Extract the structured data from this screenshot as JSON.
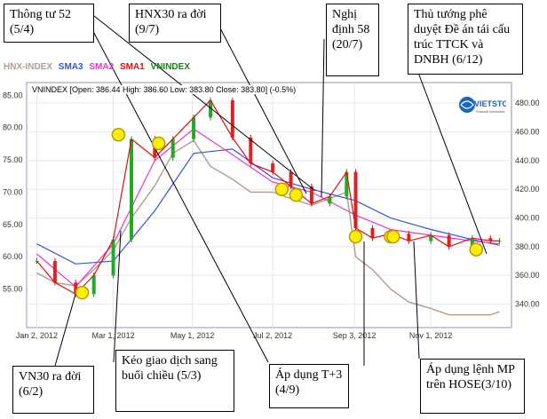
{
  "chart_data": {
    "type": "line",
    "info_bar": "VNINDEX [Open: 386.44  High: 386.60  Low: 383.80  Close: 383.80] (-0.5%)",
    "legend": [
      "HNX-INDEX",
      "SMA3",
      "SMA2",
      "SMA1",
      "VNINDEX"
    ],
    "legend_colors": [
      "#b49c8c",
      "#3355dd",
      "#ee33cc",
      "#dd1111",
      "#118811"
    ],
    "left_axis": {
      "ticks": [
        "85.00",
        "80.00",
        "75.00",
        "70.00",
        "65.00",
        "60.00",
        "55.00"
      ],
      "range": [
        50,
        86
      ]
    },
    "right_axis": {
      "ticks": [
        "480.00",
        "460.00",
        "440.00",
        "420.00",
        "400.00",
        "380.00",
        "360.00",
        "340.00"
      ],
      "range": [
        328,
        490
      ]
    },
    "x_ticks": [
      "Jan 2, 2012",
      "Mar 1, 2012",
      "May 1, 2012",
      "Jul 2, 2012",
      "Sep 3, 2012",
      "Nov 1, 2012"
    ],
    "x_range": [
      "2012-01-01",
      "2012-12-25"
    ],
    "vnindex": {
      "dates": [
        "2012-01-02",
        "2012-01-16",
        "2012-02-01",
        "2012-02-15",
        "2012-03-01",
        "2012-03-15",
        "2012-04-02",
        "2012-04-16",
        "2012-05-02",
        "2012-05-15",
        "2012-06-01",
        "2012-06-15",
        "2012-07-02",
        "2012-07-16",
        "2012-08-01",
        "2012-08-15",
        "2012-08-28",
        "2012-09-04",
        "2012-09-17",
        "2012-10-01",
        "2012-10-15",
        "2012-11-01",
        "2012-11-15",
        "2012-12-03",
        "2012-12-17",
        "2012-12-24"
      ],
      "values": [
        370,
        355,
        347,
        360,
        385,
        455,
        442,
        455,
        470,
        482,
        456,
        438,
        432,
        422,
        410,
        415,
        432,
        393,
        386,
        389,
        384,
        388,
        380,
        386,
        384,
        384
      ]
    },
    "hnx_index": {
      "dates": [
        "2012-01-02",
        "2012-01-16",
        "2012-02-01",
        "2012-02-15",
        "2012-03-01",
        "2012-03-15",
        "2012-04-02",
        "2012-04-16",
        "2012-05-02",
        "2012-05-15",
        "2012-06-01",
        "2012-06-15",
        "2012-07-02",
        "2012-07-16",
        "2012-08-01",
        "2012-08-15",
        "2012-08-28",
        "2012-09-04",
        "2012-09-17",
        "2012-10-01",
        "2012-10-15",
        "2012-11-01",
        "2012-11-15",
        "2012-12-03",
        "2012-12-17",
        "2012-12-24"
      ],
      "values": [
        57.5,
        56,
        55.5,
        58,
        61,
        66,
        71,
        76,
        78,
        74,
        72,
        70,
        70,
        69,
        68,
        69,
        70,
        60,
        58,
        55,
        53,
        52,
        51,
        51,
        51,
        51.5
      ]
    },
    "sma_slow": {
      "dates": [
        "2012-01-02",
        "2012-02-01",
        "2012-03-01",
        "2012-04-02",
        "2012-05-02",
        "2012-06-01",
        "2012-07-02",
        "2012-08-01",
        "2012-09-04",
        "2012-10-01",
        "2012-11-01",
        "2012-12-03",
        "2012-12-24"
      ],
      "values": [
        382,
        368,
        370,
        405,
        445,
        448,
        428,
        420,
        412,
        400,
        392,
        385,
        381
      ]
    },
    "sma_fast": {
      "dates": [
        "2012-01-02",
        "2012-02-01",
        "2012-03-01",
        "2012-04-02",
        "2012-05-02",
        "2012-06-01",
        "2012-07-02",
        "2012-08-01",
        "2012-09-04",
        "2012-10-01",
        "2012-11-01",
        "2012-12-03",
        "2012-12-24"
      ],
      "values": [
        375,
        352,
        382,
        440,
        462,
        444,
        425,
        418,
        402,
        392,
        388,
        384,
        382
      ]
    },
    "events": [
      {
        "date": "2012-02-06",
        "vnindex": 348
      },
      {
        "date": "2012-03-05",
        "vnindex": 458
      },
      {
        "date": "2012-04-05",
        "vnindex": 452
      },
      {
        "date": "2012-07-09",
        "vnindex": 420
      },
      {
        "date": "2012-07-20",
        "vnindex": 416
      },
      {
        "date": "2012-09-04",
        "vnindex": 387
      },
      {
        "date": "2012-10-01",
        "vnindex": 387
      },
      {
        "date": "2012-10-03",
        "vnindex": 387
      },
      {
        "date": "2012-12-06",
        "vnindex": 378
      }
    ]
  },
  "callouts": {
    "thong_tu_52": "Thông tư 52 (5/4)",
    "hnx30": "HNX30 ra đời (9/7)",
    "nghi_dinh_58": "Nghị định 58 (20/7)",
    "thu_tuong": "Thủ tướng phê duyệt Đề án tái cấu trúc TTCK và DNBH (6/12)",
    "vn30": "VN30 ra đời (6/2)",
    "keo_giao_dich": "Kéo giao dịch sang buổi chiều (5/3)",
    "t3": "Áp dụng T+3 (4/9)",
    "mp": "Áp dụng lệnh MP trên HOSE(3/10)"
  },
  "logo": {
    "text": "VIETSTOCK",
    "tagline": "Financial Information"
  }
}
